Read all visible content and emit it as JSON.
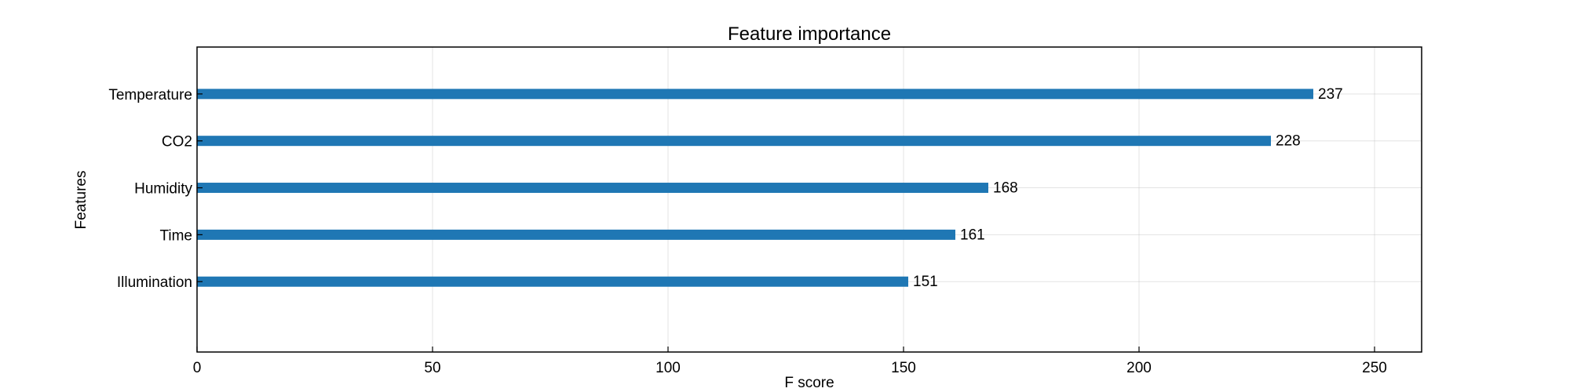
{
  "chart_data": {
    "type": "bar",
    "orientation": "horizontal",
    "title": "Feature importance",
    "xlabel": "F score",
    "ylabel": "Features",
    "categories": [
      "Temperature",
      "CO2",
      "Humidity",
      "Time",
      "Illumination"
    ],
    "values": [
      237,
      228,
      168,
      161,
      151
    ],
    "data_labels": [
      "237",
      "228",
      "168",
      "161",
      "151"
    ],
    "xlim": [
      0,
      260
    ],
    "xticks": [
      0,
      50,
      100,
      150,
      200,
      250
    ],
    "xtick_labels": [
      "0",
      "50",
      "100",
      "150",
      "200",
      "250"
    ],
    "grid": true,
    "bar_color": "#1f77b4"
  }
}
